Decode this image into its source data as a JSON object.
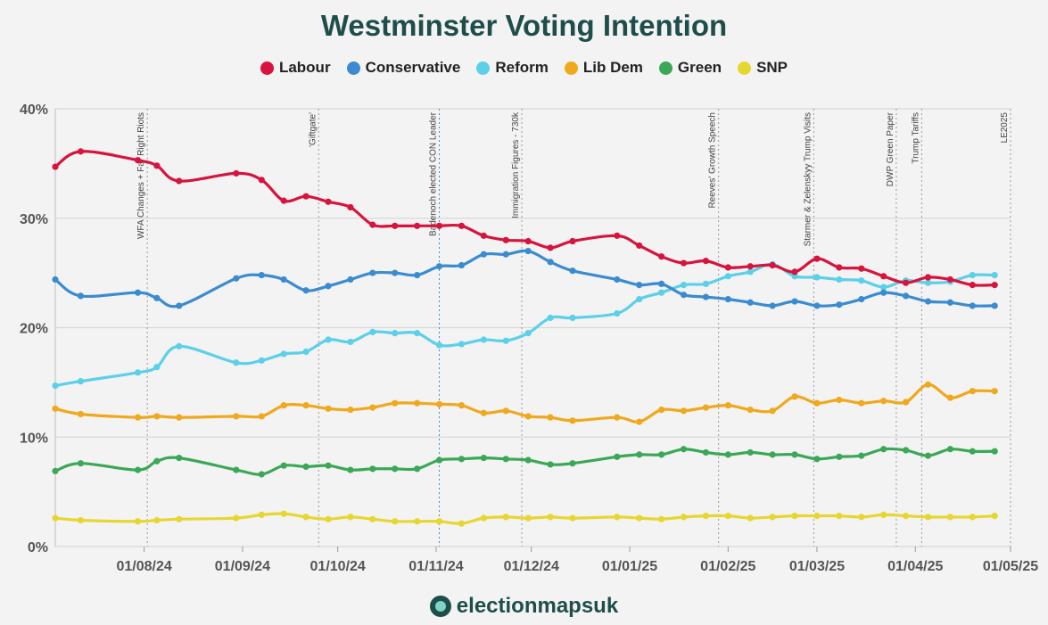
{
  "chart_data": {
    "type": "line",
    "title": "Westminster Voting Intention",
    "ylim": [
      0,
      40
    ],
    "ytick_labels": [
      "0%",
      "10%",
      "20%",
      "30%",
      "40%"
    ],
    "yticks": [
      0,
      10,
      20,
      30,
      40
    ],
    "xlim": [
      "2024-07-04",
      "2025-05-01"
    ],
    "xtick_dates": [
      "2024-08-01",
      "2024-09-01",
      "2024-10-01",
      "2024-11-01",
      "2024-12-01",
      "2025-01-01",
      "2025-02-01",
      "2025-03-01",
      "2025-04-01",
      "2025-05-01"
    ],
    "xtick_labels": [
      "01/08/24",
      "01/09/24",
      "01/10/24",
      "01/11/24",
      "01/12/24",
      "01/01/25",
      "01/02/25",
      "01/03/25",
      "01/04/25",
      "01/05/25"
    ],
    "grid": true,
    "legend_position": "top",
    "events": [
      {
        "date": "2024-08-02",
        "label": "WFA Changes + Far Right Riots"
      },
      {
        "date": "2024-09-25",
        "label": "'Giftgate'"
      },
      {
        "date": "2024-11-02",
        "label": "Badenoch elected CON Leader"
      },
      {
        "date": "2024-11-28",
        "label": "Immigration Figures - 730k"
      },
      {
        "date": "2025-01-29",
        "label": "Reeves' Growth Speech"
      },
      {
        "date": "2025-02-28",
        "label": "Starmer & Zelenskyy Trump Visits"
      },
      {
        "date": "2025-03-26",
        "label": "DWP Green Paper"
      },
      {
        "date": "2025-04-03",
        "label": "Trump Tariffs"
      },
      {
        "date": "2025-05-01",
        "label": "LE2025"
      }
    ],
    "dates": [
      "2024-07-04",
      "2024-07-12",
      "2024-07-30",
      "2024-08-05",
      "2024-08-12",
      "2024-08-30",
      "2024-09-07",
      "2024-09-14",
      "2024-09-21",
      "2024-09-28",
      "2024-10-05",
      "2024-10-12",
      "2024-10-19",
      "2024-10-26",
      "2024-11-02",
      "2024-11-09",
      "2024-11-16",
      "2024-11-23",
      "2024-11-30",
      "2024-12-07",
      "2024-12-14",
      "2024-12-28",
      "2025-01-04",
      "2025-01-11",
      "2025-01-18",
      "2025-01-25",
      "2025-02-01",
      "2025-02-08",
      "2025-02-15",
      "2025-02-22",
      "2025-03-01",
      "2025-03-08",
      "2025-03-15",
      "2025-03-22",
      "2025-03-29",
      "2025-04-05",
      "2025-04-12",
      "2025-04-19",
      "2025-04-26"
    ],
    "series": [
      {
        "name": "Labour",
        "color": "#d6143e",
        "values": [
          34.7,
          36.1,
          35.3,
          34.8,
          33.4,
          34.1,
          33.5,
          31.6,
          32.0,
          31.5,
          31.0,
          29.4,
          29.3,
          29.3,
          29.3,
          29.3,
          28.4,
          28.0,
          27.9,
          27.3,
          27.9,
          28.4,
          27.5,
          26.5,
          25.9,
          26.1,
          25.5,
          25.6,
          25.7,
          25.1,
          26.3,
          25.5,
          25.4,
          24.7,
          24.1,
          24.6,
          24.4,
          23.9,
          23.9
        ]
      },
      {
        "name": "Conservative",
        "color": "#3b8bd0",
        "values": [
          24.4,
          22.9,
          23.2,
          22.7,
          22.0,
          24.5,
          24.8,
          24.4,
          23.4,
          23.8,
          24.4,
          25.0,
          25.0,
          24.8,
          25.6,
          25.7,
          26.7,
          26.7,
          27.0,
          26.0,
          25.2,
          24.4,
          23.9,
          24.0,
          23.0,
          22.8,
          22.6,
          22.3,
          22.0,
          22.4,
          22.0,
          22.1,
          22.6,
          23.2,
          22.9,
          22.4,
          22.3,
          22.0,
          22.0
        ]
      },
      {
        "name": "Reform",
        "color": "#5bd0e8",
        "values": [
          14.7,
          15.1,
          15.9,
          16.4,
          18.3,
          16.8,
          17.0,
          17.6,
          17.8,
          18.9,
          18.7,
          19.6,
          19.5,
          19.5,
          18.4,
          18.5,
          18.9,
          18.8,
          19.5,
          20.9,
          20.9,
          21.3,
          22.6,
          23.2,
          23.9,
          24.0,
          24.7,
          25.1,
          25.8,
          24.7,
          24.6,
          24.4,
          24.3,
          23.7,
          24.3,
          24.1,
          24.2,
          24.8,
          24.8
        ]
      },
      {
        "name": "Lib Dem",
        "color": "#f0a81c",
        "values": [
          12.6,
          12.1,
          11.8,
          11.9,
          11.8,
          11.9,
          11.9,
          12.9,
          12.9,
          12.6,
          12.5,
          12.7,
          13.1,
          13.1,
          13.0,
          12.9,
          12.2,
          12.4,
          11.9,
          11.8,
          11.5,
          11.8,
          11.4,
          12.5,
          12.4,
          12.7,
          12.9,
          12.5,
          12.4,
          13.7,
          13.1,
          13.4,
          13.1,
          13.3,
          13.2,
          14.8,
          13.6,
          14.2,
          14.2
        ]
      },
      {
        "name": "Green",
        "color": "#3aa856",
        "values": [
          6.9,
          7.6,
          7.0,
          7.8,
          8.1,
          7.0,
          6.6,
          7.4,
          7.3,
          7.4,
          7.0,
          7.1,
          7.1,
          7.1,
          7.9,
          8.0,
          8.1,
          8.0,
          7.9,
          7.5,
          7.6,
          8.2,
          8.4,
          8.4,
          8.9,
          8.6,
          8.4,
          8.6,
          8.4,
          8.4,
          8.0,
          8.2,
          8.3,
          8.9,
          8.8,
          8.3,
          8.9,
          8.7,
          8.7
        ]
      },
      {
        "name": "SNP",
        "color": "#e6d730",
        "values": [
          2.6,
          2.4,
          2.3,
          2.4,
          2.5,
          2.6,
          2.9,
          3.0,
          2.7,
          2.5,
          2.7,
          2.5,
          2.3,
          2.3,
          2.3,
          2.1,
          2.6,
          2.7,
          2.6,
          2.7,
          2.6,
          2.7,
          2.6,
          2.5,
          2.7,
          2.8,
          2.8,
          2.6,
          2.7,
          2.8,
          2.8,
          2.8,
          2.7,
          2.9,
          2.8,
          2.7,
          2.7,
          2.7,
          2.8
        ]
      }
    ]
  },
  "logo_text": "electionmapsuk"
}
